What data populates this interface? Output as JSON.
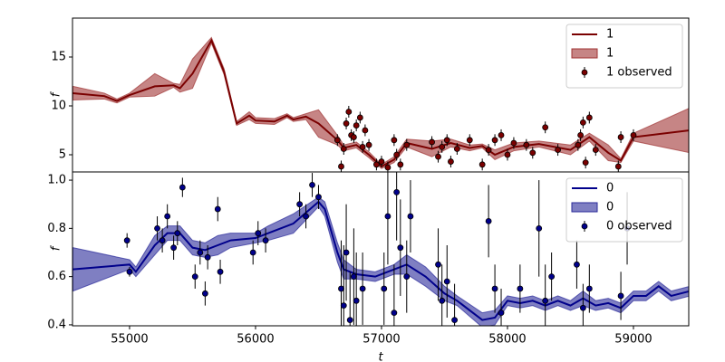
{
  "chart_data": [
    {
      "type": "line",
      "ylabel": "f",
      "xlim": [
        54547,
        59439
      ],
      "ylim": [
        3.24,
        18.98
      ],
      "yticks": [
        5,
        10,
        15
      ],
      "legend": "upper right",
      "series": [
        {
          "name": "1",
          "kind": "line",
          "color": "#7a0000",
          "x": [
            54550,
            54800,
            54900,
            55000,
            55200,
            55350,
            55400,
            55500,
            55650,
            55750,
            55850,
            55950,
            56000,
            56150,
            56250,
            56300,
            56400,
            56500,
            56650,
            56700,
            56800,
            56900,
            57000,
            57100,
            57200,
            57400,
            57550,
            57700,
            57800,
            57900,
            58050,
            58250,
            58500,
            58650,
            58800,
            58900,
            59000,
            59450
          ],
          "values": [
            11.3,
            11.0,
            10.5,
            11.1,
            12.0,
            12.1,
            11.8,
            13.3,
            16.7,
            13.5,
            8.2,
            9.0,
            8.5,
            8.4,
            9.0,
            8.6,
            8.9,
            8.2,
            6.5,
            5.7,
            6.0,
            5.0,
            3.8,
            4.5,
            6.2,
            5.6,
            6.2,
            5.7,
            5.9,
            5.0,
            5.8,
            6.1,
            5.5,
            6.8,
            5.2,
            4.4,
            6.8,
            7.5
          ]
        },
        {
          "name": "1",
          "kind": "band",
          "color": "#a03434",
          "x": [
            54550,
            54800,
            54900,
            55000,
            55200,
            55350,
            55400,
            55500,
            55650,
            55750,
            55850,
            55950,
            56000,
            56150,
            56250,
            56300,
            56400,
            56500,
            56650,
            56700,
            56800,
            56900,
            57000,
            57100,
            57200,
            57400,
            57550,
            57700,
            57800,
            57900,
            58050,
            58250,
            58500,
            58650,
            58800,
            58900,
            59000,
            59450
          ],
          "upper": [
            12.0,
            11.3,
            10.7,
            11.3,
            13.3,
            12.3,
            12.2,
            14.8,
            17.0,
            13.8,
            8.4,
            9.4,
            8.8,
            8.7,
            9.2,
            8.8,
            9.2,
            9.6,
            7.0,
            6.0,
            6.3,
            5.3,
            4.0,
            4.8,
            6.6,
            6.4,
            6.6,
            6.0,
            6.1,
            5.5,
            6.2,
            6.4,
            6.0,
            7.2,
            6.0,
            4.6,
            7.2,
            9.8
          ],
          "lower": [
            10.6,
            10.7,
            10.3,
            10.9,
            11.0,
            11.9,
            11.4,
            11.8,
            16.4,
            13.2,
            8.0,
            8.6,
            8.2,
            8.1,
            8.8,
            8.4,
            8.6,
            6.8,
            6.0,
            5.4,
            5.7,
            4.7,
            3.6,
            4.2,
            5.8,
            4.8,
            5.8,
            5.4,
            5.7,
            4.5,
            5.4,
            5.8,
            5.0,
            6.4,
            4.4,
            4.2,
            6.4,
            5.2
          ]
        },
        {
          "name": "1 observed",
          "kind": "errorbar",
          "color": "#7a0000",
          "x": [
            56650,
            56680,
            56700,
            56720,
            56740,
            56760,
            56780,
            56800,
            56830,
            56850,
            56870,
            56900,
            56960,
            57000,
            57050,
            57100,
            57120,
            57150,
            57200,
            57400,
            57450,
            57480,
            57520,
            57550,
            57600,
            57700,
            57800,
            57850,
            57900,
            57950,
            58000,
            58050,
            58150,
            58200,
            58300,
            58400,
            58560,
            58580,
            58600,
            58620,
            58650,
            58700,
            58880,
            58900,
            59000
          ],
          "values": [
            6.5,
            3.8,
            5.6,
            8.2,
            9.4,
            7.0,
            6.8,
            8.0,
            8.8,
            5.8,
            7.5,
            6.0,
            4.0,
            4.3,
            3.7,
            6.5,
            5.0,
            4.0,
            6.0,
            6.3,
            4.8,
            5.8,
            6.5,
            4.3,
            5.6,
            6.5,
            4.0,
            5.5,
            6.5,
            7.0,
            5.0,
            6.2,
            6.0,
            5.2,
            7.8,
            5.5,
            6.0,
            7.0,
            8.3,
            4.2,
            8.8,
            5.5,
            3.8,
            6.8,
            7.0
          ],
          "errors": [
            0.6,
            0.6,
            0.6,
            0.6,
            0.6,
            0.6,
            0.6,
            0.6,
            0.6,
            0.6,
            0.6,
            0.6,
            0.6,
            0.6,
            0.6,
            0.6,
            0.6,
            0.6,
            0.6,
            0.6,
            0.6,
            0.6,
            0.6,
            0.6,
            0.6,
            0.6,
            0.6,
            0.6,
            0.6,
            0.6,
            0.6,
            0.6,
            0.6,
            0.6,
            0.6,
            0.6,
            0.6,
            0.6,
            0.6,
            0.6,
            0.6,
            0.6,
            0.6,
            0.6,
            0.6
          ]
        }
      ]
    },
    {
      "type": "line",
      "xlabel": "t",
      "ylabel": "f",
      "xlim": [
        54547,
        59439
      ],
      "ylim": [
        0.396,
        1.034
      ],
      "xticks": [
        55000,
        56000,
        57000,
        58000,
        59000
      ],
      "yticks": [
        0.4,
        0.6,
        0.8,
        {
          "value": 1,
          "label": "1.0"
        }
      ],
      "legend": "upper right",
      "series": [
        {
          "name": "0",
          "kind": "line",
          "color": "#00008b",
          "x": [
            54550,
            55000,
            55050,
            55200,
            55300,
            55400,
            55500,
            55600,
            55700,
            55800,
            56000,
            56100,
            56300,
            56500,
            56550,
            56650,
            56700,
            56800,
            56950,
            57100,
            57200,
            57350,
            57500,
            57600,
            57800,
            57900,
            58000,
            58100,
            58200,
            58300,
            58400,
            58500,
            58600,
            58700,
            58800,
            58900,
            59000,
            59100,
            59200,
            59300,
            59450
          ],
          "values": [
            0.63,
            0.65,
            0.62,
            0.73,
            0.78,
            0.78,
            0.72,
            0.71,
            0.73,
            0.75,
            0.76,
            0.78,
            0.82,
            0.91,
            0.88,
            0.7,
            0.63,
            0.61,
            0.6,
            0.63,
            0.65,
            0.6,
            0.53,
            0.5,
            0.42,
            0.43,
            0.5,
            0.49,
            0.5,
            0.48,
            0.5,
            0.48,
            0.51,
            0.48,
            0.49,
            0.47,
            0.52,
            0.52,
            0.56,
            0.52,
            0.54
          ]
        },
        {
          "name": "0",
          "kind": "band",
          "color": "#2a2a9a",
          "x": [
            54550,
            55000,
            55050,
            55200,
            55300,
            55400,
            55500,
            55600,
            55700,
            55800,
            56000,
            56100,
            56300,
            56500,
            56550,
            56650,
            56700,
            56800,
            56950,
            57100,
            57200,
            57350,
            57500,
            57600,
            57800,
            57900,
            58000,
            58100,
            58200,
            58300,
            58400,
            58500,
            58600,
            58700,
            58800,
            58900,
            59000,
            59100,
            59200,
            59300,
            59450
          ],
          "upper": [
            0.72,
            0.67,
            0.64,
            0.77,
            0.81,
            0.81,
            0.75,
            0.74,
            0.77,
            0.78,
            0.78,
            0.81,
            0.86,
            0.93,
            0.91,
            0.74,
            0.67,
            0.63,
            0.62,
            0.65,
            0.69,
            0.64,
            0.56,
            0.52,
            0.45,
            0.46,
            0.52,
            0.51,
            0.52,
            0.5,
            0.52,
            0.5,
            0.54,
            0.5,
            0.51,
            0.49,
            0.54,
            0.54,
            0.58,
            0.54,
            0.56
          ],
          "lower": [
            0.54,
            0.63,
            0.6,
            0.69,
            0.75,
            0.75,
            0.69,
            0.68,
            0.69,
            0.72,
            0.74,
            0.75,
            0.78,
            0.89,
            0.85,
            0.66,
            0.59,
            0.59,
            0.58,
            0.61,
            0.61,
            0.56,
            0.5,
            0.48,
            0.39,
            0.4,
            0.48,
            0.47,
            0.48,
            0.46,
            0.48,
            0.46,
            0.48,
            0.46,
            0.47,
            0.45,
            0.5,
            0.5,
            0.54,
            0.5,
            0.52
          ]
        },
        {
          "name": "0 observed",
          "kind": "errorbar",
          "color": "#00008b",
          "x": [
            54980,
            55000,
            55220,
            55260,
            55300,
            55350,
            55380,
            55420,
            55520,
            55560,
            55600,
            55620,
            55700,
            55720,
            55980,
            56020,
            56080,
            56350,
            56400,
            56450,
            56500,
            56680,
            56700,
            56720,
            56750,
            56780,
            56800,
            56850,
            57020,
            57050,
            57100,
            57120,
            57150,
            57200,
            57230,
            57450,
            57480,
            57520,
            57580,
            57850,
            57900,
            57950,
            58100,
            58250,
            58300,
            58350,
            58550,
            58600,
            58650,
            58900,
            58950
          ],
          "values": [
            0.75,
            0.62,
            0.8,
            0.75,
            0.85,
            0.72,
            0.78,
            0.97,
            0.6,
            0.7,
            0.53,
            0.68,
            0.88,
            0.62,
            0.7,
            0.78,
            0.75,
            0.9,
            0.85,
            0.98,
            0.93,
            0.55,
            0.48,
            0.7,
            0.42,
            0.6,
            0.5,
            0.55,
            0.55,
            0.85,
            0.45,
            0.95,
            0.72,
            0.6,
            0.85,
            0.65,
            0.5,
            0.58,
            0.42,
            0.83,
            0.55,
            0.45,
            0.55,
            0.8,
            0.5,
            0.6,
            0.65,
            0.47,
            0.55,
            0.52,
            0.8
          ],
          "errors": [
            0.03,
            0.02,
            0.05,
            0.05,
            0.05,
            0.05,
            0.05,
            0.04,
            0.05,
            0.05,
            0.05,
            0.05,
            0.05,
            0.05,
            0.05,
            0.05,
            0.05,
            0.05,
            0.05,
            0.05,
            0.05,
            0.2,
            0.25,
            0.2,
            0.2,
            0.2,
            0.2,
            0.15,
            0.15,
            0.2,
            0.2,
            0.2,
            0.2,
            0.15,
            0.15,
            0.15,
            0.15,
            0.15,
            0.15,
            0.15,
            0.1,
            0.1,
            0.1,
            0.2,
            0.15,
            0.1,
            0.1,
            0.1,
            0.1,
            0.1,
            0.15
          ]
        }
      ]
    }
  ]
}
